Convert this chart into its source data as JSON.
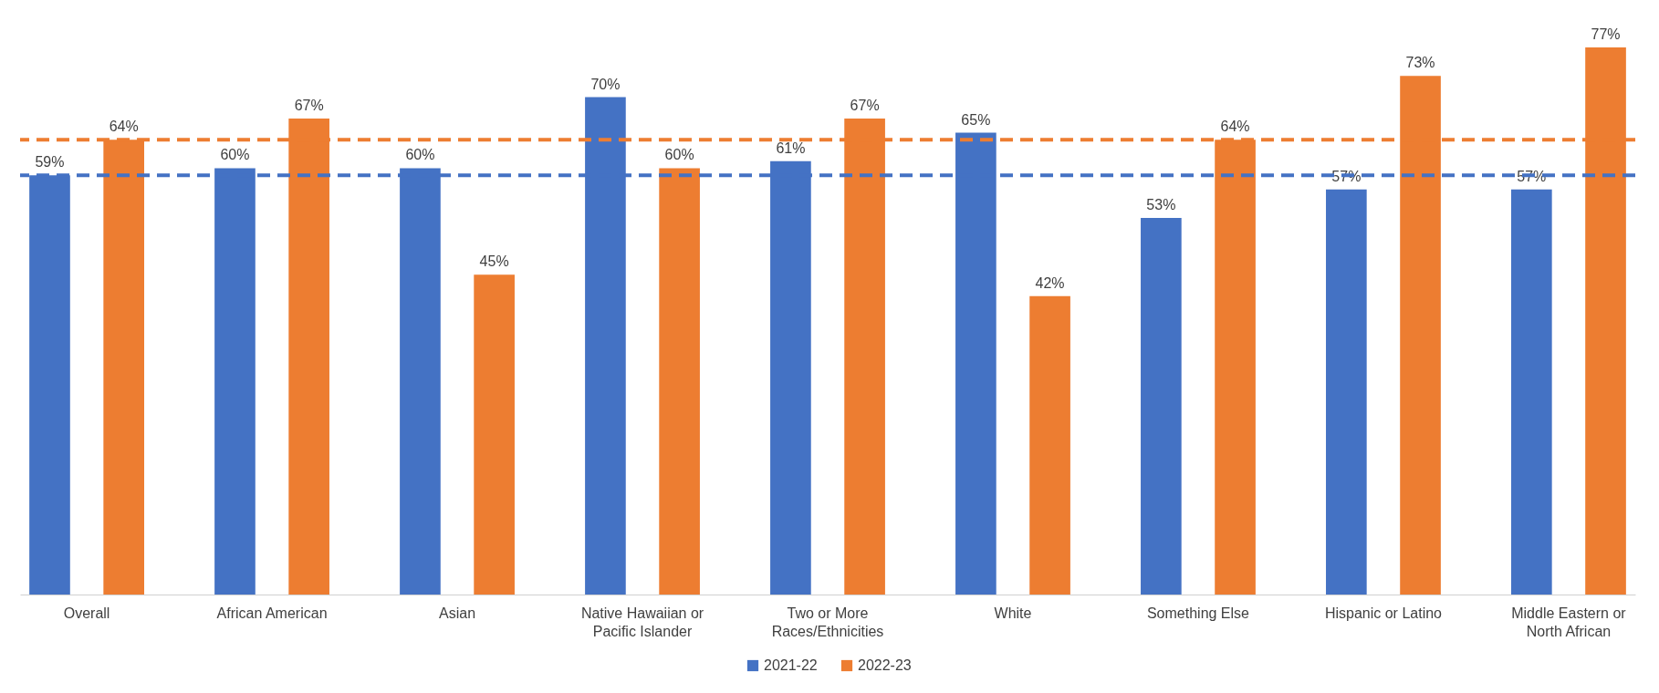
{
  "chart_data": {
    "type": "bar",
    "categories": [
      "Overall",
      "African American",
      "Asian",
      "Native Hawaiian or Pacific Islander",
      "Two or More Races/Ethnicities",
      "White",
      "Something Else",
      "Hispanic or Latino",
      "Middle Eastern or North African"
    ],
    "series": [
      {
        "name": "2021-22",
        "color": "#4472c4",
        "values": [
          59,
          60,
          60,
          70,
          61,
          65,
          53,
          57,
          57
        ],
        "value_labels": [
          "59%",
          "60%",
          "60%",
          "70%",
          "61%",
          "65%",
          "53%",
          "57%",
          "57%"
        ]
      },
      {
        "name": "2022-23",
        "color": "#ed7d31",
        "values": [
          64,
          67,
          45,
          60,
          67,
          42,
          64,
          73,
          77
        ],
        "value_labels": [
          "64%",
          "67%",
          "45%",
          "60%",
          "67%",
          "42%",
          "64%",
          "73%",
          "77%"
        ]
      }
    ],
    "ref_lines": [
      {
        "axis": "y",
        "value": 59,
        "color": "#4472c4",
        "line_style": "dashed"
      },
      {
        "axis": "y",
        "value": 64,
        "color": "#ed7d31",
        "line_style": "dashed"
      }
    ],
    "legend": "bottom",
    "grid": false
  }
}
